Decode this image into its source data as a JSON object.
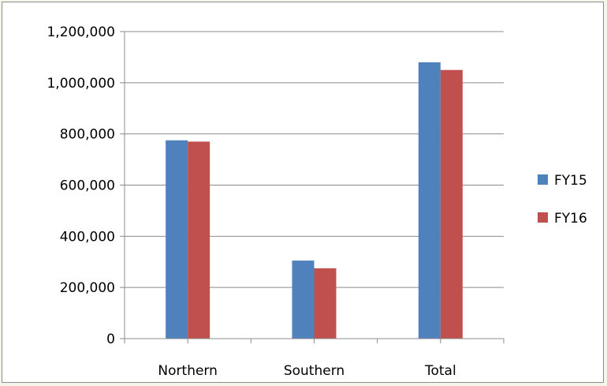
{
  "chart_data": {
    "type": "bar",
    "categories": [
      "Northern",
      "Southern",
      "Total"
    ],
    "series": [
      {
        "name": "FY15",
        "color": "#4f81bd",
        "values": [
          775000,
          305000,
          1080000
        ]
      },
      {
        "name": "FY16",
        "color": "#c0504d",
        "values": [
          770000,
          275000,
          1050000
        ]
      }
    ],
    "ylim": [
      0,
      1200000
    ],
    "yticks": [
      0,
      200000,
      400000,
      600000,
      800000,
      1000000,
      1200000
    ],
    "ytick_labels": [
      "0",
      "200,000",
      "400,000",
      "600,000",
      "800,000",
      "1,000,000",
      "1,200,000"
    ],
    "grid": true,
    "legend_position": "right",
    "title": "",
    "xlabel": "",
    "ylabel": ""
  }
}
